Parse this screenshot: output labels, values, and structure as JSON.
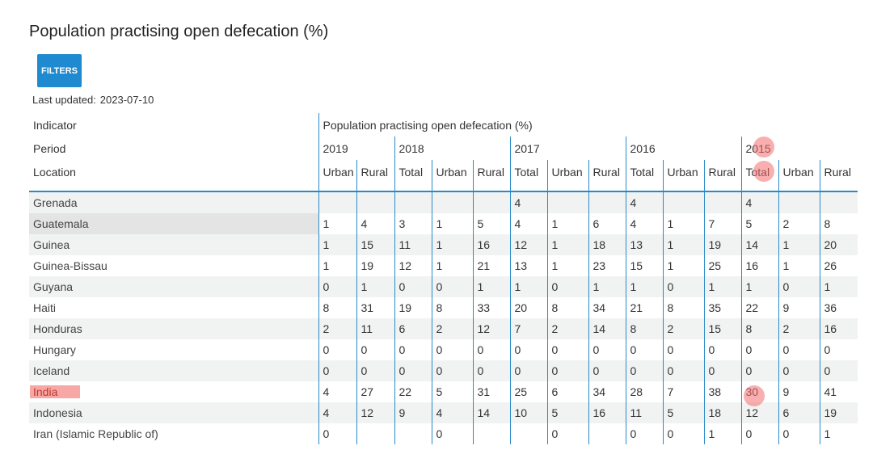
{
  "title": "Population practising open defecation (%)",
  "filters_label": "FILTERS",
  "last_updated": {
    "label": "Last updated:",
    "value": "2023-07-10"
  },
  "header": {
    "indicator_label": "Indicator",
    "indicator_value": "Population practising open defecation (%)",
    "period_label": "Period",
    "location_label": "Location",
    "years": [
      "2019",
      "2018",
      "2017",
      "2016",
      "2015"
    ],
    "columns": [
      "Urban",
      "Rural",
      "Total",
      "Urban",
      "Rural",
      "Total",
      "Urban",
      "Rural",
      "Total",
      "Urban",
      "Rural",
      "Total",
      "Urban",
      "Rural"
    ]
  },
  "rows": [
    {
      "location": "Grenada",
      "values": [
        "",
        "",
        "",
        "",
        "",
        "4",
        "",
        "",
        "4",
        "",
        "",
        "4",
        "",
        ""
      ]
    },
    {
      "location": "Guatemala",
      "values": [
        "1",
        "4",
        "3",
        "1",
        "5",
        "4",
        "1",
        "6",
        "4",
        "1",
        "7",
        "5",
        "2",
        "8"
      ]
    },
    {
      "location": "Guinea",
      "values": [
        "1",
        "15",
        "11",
        "1",
        "16",
        "12",
        "1",
        "18",
        "13",
        "1",
        "19",
        "14",
        "1",
        "20"
      ]
    },
    {
      "location": "Guinea-Bissau",
      "values": [
        "1",
        "19",
        "12",
        "1",
        "21",
        "13",
        "1",
        "23",
        "15",
        "1",
        "25",
        "16",
        "1",
        "26"
      ]
    },
    {
      "location": "Guyana",
      "values": [
        "0",
        "1",
        "0",
        "0",
        "1",
        "1",
        "0",
        "1",
        "1",
        "0",
        "1",
        "1",
        "0",
        "1"
      ]
    },
    {
      "location": "Haiti",
      "values": [
        "8",
        "31",
        "19",
        "8",
        "33",
        "20",
        "8",
        "34",
        "21",
        "8",
        "35",
        "22",
        "9",
        "36"
      ]
    },
    {
      "location": "Honduras",
      "values": [
        "2",
        "11",
        "6",
        "2",
        "12",
        "7",
        "2",
        "14",
        "8",
        "2",
        "15",
        "8",
        "2",
        "16"
      ]
    },
    {
      "location": "Hungary",
      "values": [
        "0",
        "0",
        "0",
        "0",
        "0",
        "0",
        "0",
        "0",
        "0",
        "0",
        "0",
        "0",
        "0",
        "0"
      ]
    },
    {
      "location": "Iceland",
      "values": [
        "0",
        "0",
        "0",
        "0",
        "0",
        "0",
        "0",
        "0",
        "0",
        "0",
        "0",
        "0",
        "0",
        "0"
      ]
    },
    {
      "location": "India",
      "values": [
        "4",
        "27",
        "22",
        "5",
        "31",
        "25",
        "6",
        "34",
        "28",
        "7",
        "38",
        "30",
        "9",
        "41"
      ]
    },
    {
      "location": "Indonesia",
      "values": [
        "4",
        "12",
        "9",
        "4",
        "14",
        "10",
        "5",
        "16",
        "11",
        "5",
        "18",
        "12",
        "6",
        "19"
      ]
    },
    {
      "location": "Iran (Islamic Republic of)",
      "values": [
        "0",
        "",
        "",
        "0",
        "",
        "",
        "0",
        "",
        "0",
        "0",
        "1",
        "0",
        "0",
        "1"
      ]
    }
  ]
}
